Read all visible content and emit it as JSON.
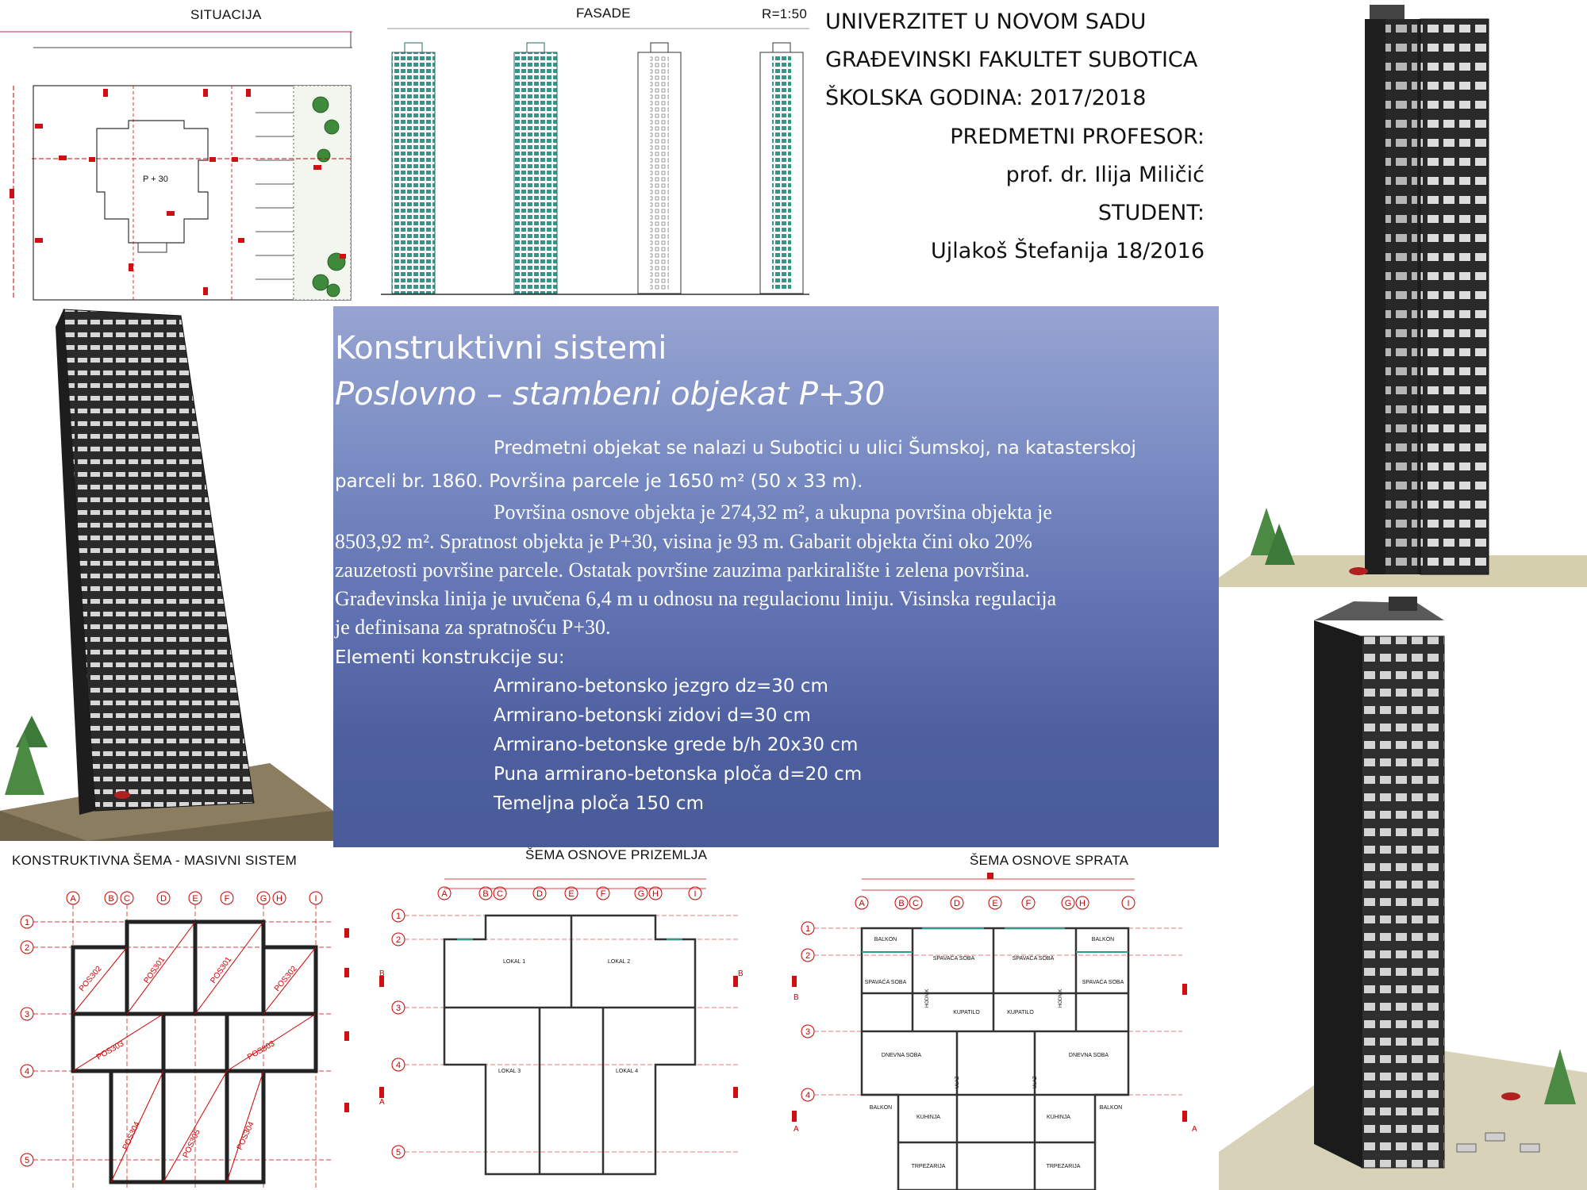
{
  "sections": {
    "situacija": "SITUACIJA",
    "fasade": "FASADE",
    "scale": "R=1:50",
    "plot_label": "P + 30",
    "masivni": "KONSTRUKTIVNA ŠEMA - MASIVNI SISTEM",
    "prizemlje": "ŠEMA OSNOVE PRIZEMLJA",
    "sprat": "ŠEMA OSNOVE SPRATA"
  },
  "header": {
    "university": "UNIVERZITET U NOVOM SADU",
    "faculty": "GRAĐEVINSKI FAKULTET SUBOTICA",
    "year": "ŠKOLSKA GODINA: 2017/2018",
    "professor_label": "PREDMETNI PROFESOR:",
    "professor": "prof. dr. Ilija Miličić",
    "student_label": "STUDENT:",
    "student": "Ujlakoš Štefanija 18/2016"
  },
  "panel": {
    "title": "Konstruktivni sistemi",
    "subtitle": "Poslovno – stambeni objekat P+30",
    "p1_line1": "Predmetni objekat se nalazi u Subotici u ulici Šumskoj, na katasterskoj",
    "p1_line2": "parceli br. 1860. Površina parcele je 1650 m² (50 x 33 m).",
    "p2_line1": "Površina osnove objekta je 274,32 m², a ukupna površina objekta je",
    "p2_line2": "8503,92 m². Spratnost objekta je P+30, visina je 93 m.  Gabarit objekta čini oko 20%",
    "p2_line3": "zauzetosti površine parcele. Ostatak površine zauzima parkiralište i zelena površina.",
    "p2_line4": "Građevinska linija je uvučena 6,4 m u odnosu na regulacionu liniju. Visinska regulacija",
    "p2_line5": "je definisana za spratnošću P+30.",
    "elements_heading": "Elementi konstrukcije su:",
    "elements": [
      "Armirano-betonsko jezgro dz=30 cm",
      "Armirano-betonski zidovi d=30 cm",
      "Armirano-betonske grede b/h 20x30 cm",
      "Puna armirano-betonska ploča d=20 cm",
      "Temeljna ploča 150 cm"
    ]
  },
  "axes": {
    "letters": [
      "A",
      "B",
      "C",
      "D",
      "E",
      "F",
      "G",
      "H",
      "I"
    ],
    "numbers": [
      "1",
      "2",
      "3",
      "4",
      "5"
    ]
  },
  "plan_labels": {
    "pos": [
      "POS302",
      "POS301",
      "POS301",
      "POS302",
      "POS303",
      "POS303",
      "POS304",
      "POS305",
      "POS304"
    ],
    "ground": [
      "LOKAL 1",
      "LOKAL 2",
      "LOKAL 3",
      "LOKAL 4"
    ],
    "floor": [
      "BALKON",
      "SPAVAĆA SOBA",
      "SPAVAĆA SOBA",
      "BALKON",
      "SPAVAĆA SOBA",
      "KUPATILO",
      "KUPATILO",
      "SPAVAĆA SOBA",
      "DNEVNA SOBA",
      "DNEVNA SOBA",
      "BALKON",
      "KUHINJA",
      "KUHINJA",
      "BALKON",
      "TRPEZARIJA",
      "TRPEZARIJA",
      "HODNIK",
      "HODNIK",
      "ULAZ",
      "ULAZ"
    ]
  }
}
